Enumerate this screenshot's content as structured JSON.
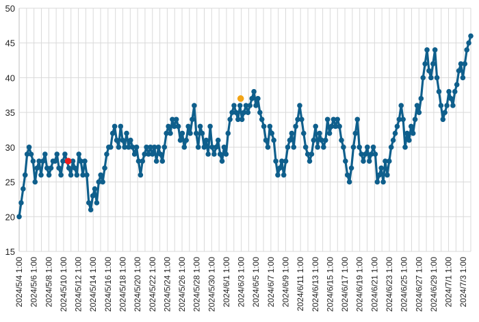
{
  "chart_data": {
    "type": "line",
    "title": "",
    "xlabel": "",
    "ylabel": "",
    "ylim": [
      15,
      50
    ],
    "yticks": [
      15,
      20,
      25,
      30,
      35,
      40,
      45,
      50
    ],
    "grid": true,
    "x_start": "2024/5/4 1:00",
    "x_end": "2024/7/4 1:00",
    "x_tick_labels": [
      "2024/5/4 1:00",
      "2024/5/6 1:00",
      "2024/5/8 1:00",
      "2024/5/10 1:00",
      "2024/5/12 1:00",
      "2024/5/14 1:00",
      "2024/5/16 1:00",
      "2024/5/18 1:00",
      "2024/5/20 1:00",
      "2024/5/22 1:00",
      "2024/5/24 1:00",
      "2024/5/26 1:00",
      "2024/5/28 1:00",
      "2024/5/30 1:00",
      "2024/6/1 1:00",
      "2024/6/3 1:00",
      "2024/6/5 1:00",
      "2024/6/7 1:00",
      "2024/6/9 1:00",
      "2024/6/11 1:00",
      "2024/6/13 1:00",
      "2024/6/15 1:00",
      "2024/6/17 1:00",
      "2024/6/19 1:00",
      "2024/6/21 1:00",
      "2024/6/23 1:00",
      "2024/6/25 1:00",
      "2024/6/27 1:00",
      "2024/6/29 1:00",
      "2024/7/1 1:00",
      "2024/7/3 1:00"
    ],
    "series_color": "#0f5f8c",
    "series": [
      {
        "values": [
          20,
          22,
          24,
          26,
          29,
          30,
          29,
          28,
          25,
          27,
          28,
          26,
          28,
          29,
          27,
          26,
          27,
          28,
          28,
          29,
          27,
          26,
          28,
          29,
          28,
          27,
          26,
          28,
          27,
          26,
          29,
          28,
          26,
          28,
          26,
          22,
          21,
          23,
          24,
          22,
          25,
          26,
          25,
          27,
          29,
          30,
          30,
          32,
          33,
          31,
          30,
          33,
          31,
          30,
          32,
          30,
          31,
          30,
          29,
          30,
          28,
          26,
          28,
          29,
          30,
          29,
          30,
          29,
          30,
          28,
          30,
          29,
          28,
          30,
          32,
          33,
          32,
          34,
          33,
          34,
          33,
          31,
          32,
          30,
          31,
          33,
          32,
          34,
          36,
          32,
          30,
          33,
          32,
          30,
          31,
          29,
          33,
          30,
          29,
          30,
          31,
          29,
          28,
          30,
          29,
          32,
          34,
          35,
          36,
          35,
          34,
          36,
          34,
          35,
          36,
          35,
          36,
          37,
          38,
          36,
          37,
          35,
          34,
          33,
          31,
          30,
          33,
          32,
          31,
          28,
          26,
          27,
          28,
          26,
          28,
          30,
          31,
          32,
          30,
          33,
          34,
          36,
          34,
          32,
          30,
          29,
          28,
          29,
          31,
          33,
          30,
          32,
          31,
          30,
          31,
          34,
          32,
          33,
          34,
          33,
          34,
          33,
          31,
          30,
          28,
          26,
          25,
          27,
          30,
          32,
          34,
          30,
          29,
          28,
          29,
          30,
          28,
          29,
          30,
          29,
          25,
          26,
          27,
          25,
          28,
          26,
          28,
          30,
          31,
          32,
          33,
          34,
          36,
          34,
          30,
          32,
          31,
          33,
          32,
          34,
          36,
          35,
          37,
          40,
          42,
          44,
          41,
          40,
          42,
          44,
          40,
          38,
          36,
          34,
          35,
          36,
          38,
          37,
          36,
          38,
          39,
          41,
          42,
          40,
          42,
          44,
          45,
          46
        ]
      }
    ],
    "highlight_points": [
      {
        "x": "2024/5/10 16:00",
        "y": 28,
        "color": "#ee1c1c"
      },
      {
        "x": "2024/6/2 23:00",
        "y": 37,
        "color": "#f2a417"
      }
    ]
  }
}
